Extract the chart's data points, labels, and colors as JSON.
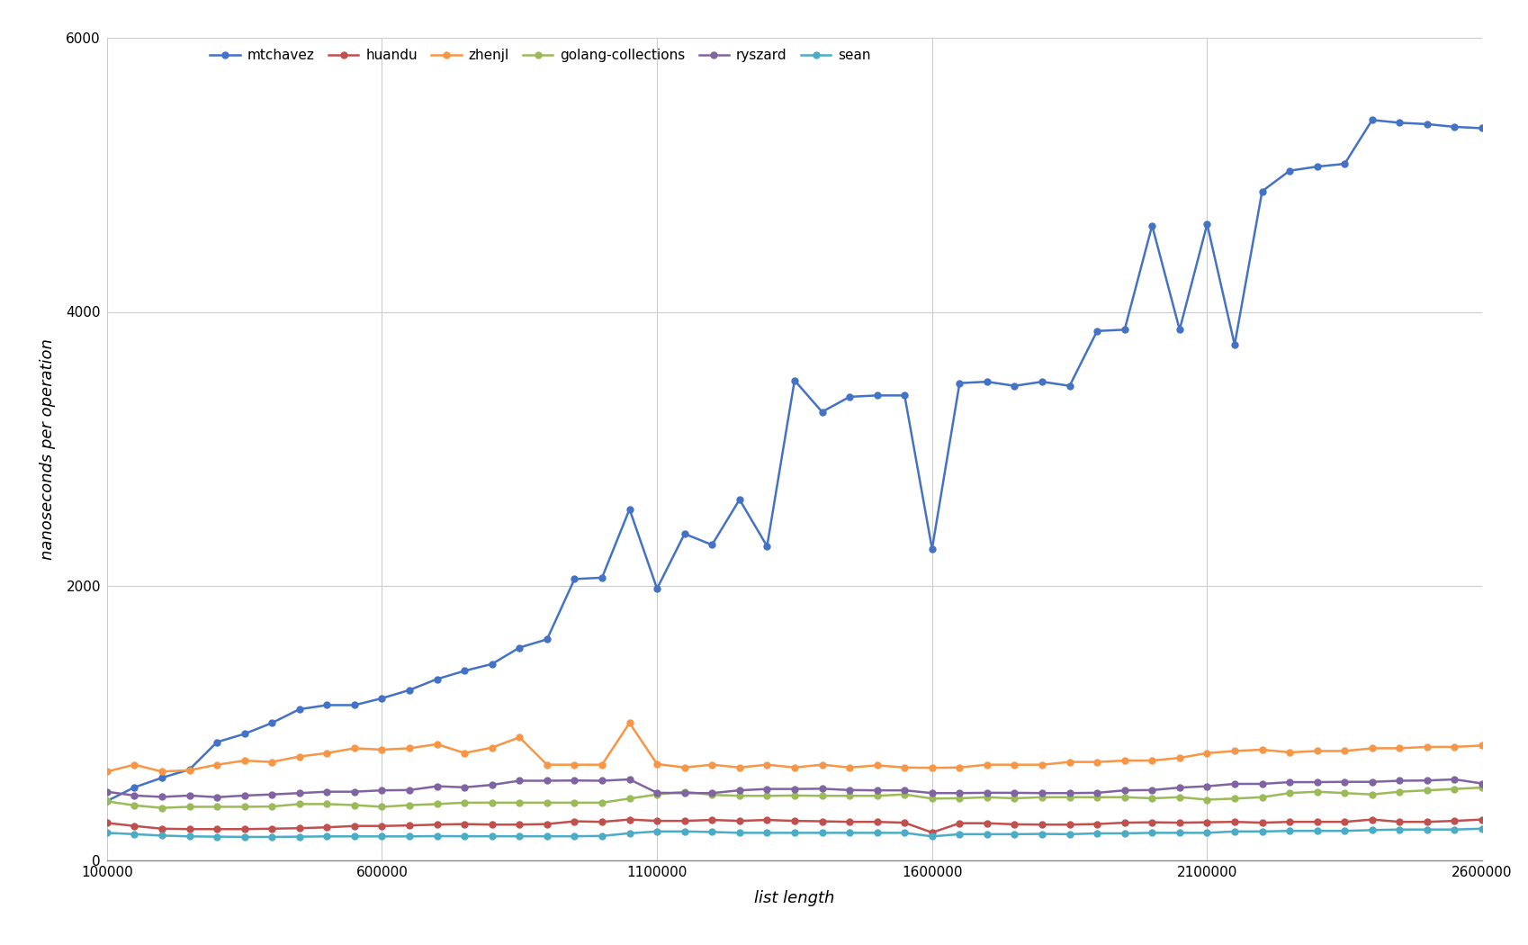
{
  "title": "",
  "xlabel": "list length",
  "ylabel": "nanoseconds per operation",
  "xlim": [
    100000,
    2600000
  ],
  "ylim": [
    0,
    6000
  ],
  "yticks": [
    0,
    2000,
    4000,
    6000
  ],
  "xticks": [
    100000,
    600000,
    1100000,
    1600000,
    2100000,
    2600000
  ],
  "background_color": "#ffffff",
  "grid_color": "#cccccc",
  "series": [
    {
      "name": "mtchavez",
      "color": "#4472c4",
      "x": [
        100000,
        150000,
        200000,
        250000,
        300000,
        350000,
        400000,
        450000,
        500000,
        550000,
        600000,
        650000,
        700000,
        750000,
        800000,
        850000,
        900000,
        950000,
        1000000,
        1050000,
        1100000,
        1150000,
        1200000,
        1250000,
        1300000,
        1350000,
        1400000,
        1450000,
        1500000,
        1550000,
        1600000,
        1650000,
        1700000,
        1750000,
        1800000,
        1850000,
        1900000,
        1950000,
        2000000,
        2050000,
        2100000,
        2150000,
        2200000,
        2250000,
        2300000,
        2350000,
        2400000,
        2450000,
        2500000,
        2550000,
        2600000
      ],
      "y": [
        430,
        530,
        600,
        660,
        860,
        920,
        1000,
        1100,
        1130,
        1130,
        1180,
        1240,
        1320,
        1380,
        1430,
        1550,
        1610,
        2050,
        2060,
        2560,
        1980,
        2380,
        2300,
        2630,
        2290,
        3500,
        3270,
        3380,
        3390,
        3390,
        2270,
        3480,
        3490,
        3460,
        3490,
        3460,
        3860,
        3870,
        4630,
        3870,
        4640,
        3760,
        4880,
        5030,
        5060,
        5080,
        5400,
        5380,
        5370,
        5350,
        5340
      ]
    },
    {
      "name": "huandu",
      "color": "#c0504d",
      "x": [
        100000,
        150000,
        200000,
        250000,
        300000,
        350000,
        400000,
        450000,
        500000,
        550000,
        600000,
        650000,
        700000,
        750000,
        800000,
        850000,
        900000,
        950000,
        1000000,
        1050000,
        1100000,
        1150000,
        1200000,
        1250000,
        1300000,
        1350000,
        1400000,
        1450000,
        1500000,
        1550000,
        1600000,
        1650000,
        1700000,
        1750000,
        1800000,
        1850000,
        1900000,
        1950000,
        2000000,
        2050000,
        2100000,
        2150000,
        2200000,
        2250000,
        2300000,
        2350000,
        2400000,
        2450000,
        2500000,
        2550000,
        2600000
      ],
      "y": [
        270,
        248,
        228,
        225,
        225,
        225,
        228,
        232,
        238,
        248,
        248,
        252,
        258,
        262,
        258,
        258,
        262,
        282,
        278,
        295,
        285,
        285,
        292,
        285,
        292,
        285,
        282,
        278,
        278,
        272,
        200,
        268,
        268,
        260,
        258,
        258,
        262,
        272,
        275,
        272,
        275,
        278,
        272,
        278,
        278,
        278,
        295,
        278,
        278,
        285,
        295
      ]
    },
    {
      "name": "zhenjl",
      "color": "#f79646",
      "x": [
        100000,
        150000,
        200000,
        250000,
        300000,
        350000,
        400000,
        450000,
        500000,
        550000,
        600000,
        650000,
        700000,
        750000,
        800000,
        850000,
        900000,
        950000,
        1000000,
        1050000,
        1100000,
        1150000,
        1200000,
        1250000,
        1300000,
        1350000,
        1400000,
        1450000,
        1500000,
        1550000,
        1600000,
        1650000,
        1700000,
        1750000,
        1800000,
        1850000,
        1900000,
        1950000,
        2000000,
        2050000,
        2100000,
        2150000,
        2200000,
        2250000,
        2300000,
        2350000,
        2400000,
        2450000,
        2500000,
        2550000,
        2600000
      ],
      "y": [
        645,
        695,
        645,
        655,
        695,
        725,
        715,
        755,
        780,
        815,
        805,
        815,
        845,
        780,
        820,
        895,
        695,
        695,
        695,
        1000,
        700,
        675,
        695,
        675,
        695,
        675,
        695,
        675,
        690,
        675,
        672,
        675,
        695,
        695,
        695,
        715,
        715,
        725,
        725,
        745,
        780,
        795,
        805,
        785,
        795,
        795,
        815,
        815,
        825,
        825,
        835
      ]
    },
    {
      "name": "golang-collections",
      "color": "#9bbb59",
      "x": [
        100000,
        150000,
        200000,
        250000,
        300000,
        350000,
        400000,
        450000,
        500000,
        550000,
        600000,
        650000,
        700000,
        750000,
        800000,
        850000,
        900000,
        950000,
        1000000,
        1050000,
        1100000,
        1150000,
        1200000,
        1250000,
        1300000,
        1350000,
        1400000,
        1450000,
        1500000,
        1550000,
        1600000,
        1650000,
        1700000,
        1750000,
        1800000,
        1850000,
        1900000,
        1950000,
        2000000,
        2050000,
        2100000,
        2150000,
        2200000,
        2250000,
        2300000,
        2350000,
        2400000,
        2450000,
        2500000,
        2550000,
        2600000
      ],
      "y": [
        428,
        398,
        380,
        388,
        388,
        388,
        390,
        408,
        408,
        400,
        388,
        400,
        408,
        418,
        418,
        418,
        418,
        418,
        418,
        448,
        478,
        498,
        475,
        468,
        468,
        470,
        468,
        468,
        468,
        478,
        448,
        450,
        458,
        450,
        458,
        458,
        458,
        458,
        450,
        458,
        440,
        448,
        458,
        488,
        498,
        488,
        478,
        498,
        508,
        518,
        528
      ]
    },
    {
      "name": "ryszard",
      "color": "#8064a2",
      "x": [
        100000,
        150000,
        200000,
        250000,
        300000,
        350000,
        400000,
        450000,
        500000,
        550000,
        600000,
        650000,
        700000,
        750000,
        800000,
        850000,
        900000,
        950000,
        1000000,
        1050000,
        1100000,
        1150000,
        1200000,
        1250000,
        1300000,
        1350000,
        1400000,
        1450000,
        1500000,
        1550000,
        1600000,
        1650000,
        1700000,
        1750000,
        1800000,
        1850000,
        1900000,
        1950000,
        2000000,
        2050000,
        2100000,
        2150000,
        2200000,
        2250000,
        2300000,
        2350000,
        2400000,
        2450000,
        2500000,
        2550000,
        2600000
      ],
      "y": [
        498,
        470,
        460,
        470,
        458,
        470,
        478,
        488,
        498,
        498,
        508,
        510,
        538,
        530,
        548,
        578,
        578,
        580,
        578,
        588,
        490,
        488,
        488,
        508,
        518,
        518,
        520,
        510,
        508,
        508,
        488,
        488,
        490,
        490,
        488,
        488,
        490,
        508,
        510,
        528,
        538,
        555,
        555,
        568,
        568,
        570,
        570,
        578,
        580,
        588,
        558
      ]
    },
    {
      "name": "sean",
      "color": "#4bacc6",
      "x": [
        100000,
        150000,
        200000,
        250000,
        300000,
        350000,
        400000,
        450000,
        500000,
        550000,
        600000,
        650000,
        700000,
        750000,
        800000,
        850000,
        900000,
        950000,
        1000000,
        1050000,
        1100000,
        1150000,
        1200000,
        1250000,
        1300000,
        1350000,
        1400000,
        1450000,
        1500000,
        1550000,
        1600000,
        1650000,
        1700000,
        1750000,
        1800000,
        1850000,
        1900000,
        1950000,
        2000000,
        2050000,
        2100000,
        2150000,
        2200000,
        2250000,
        2300000,
        2350000,
        2400000,
        2450000,
        2500000,
        2550000,
        2600000
      ],
      "y": [
        198,
        188,
        178,
        172,
        170,
        168,
        168,
        170,
        172,
        172,
        172,
        172,
        174,
        173,
        173,
        173,
        173,
        173,
        175,
        195,
        208,
        208,
        204,
        198,
        198,
        198,
        198,
        198,
        198,
        198,
        172,
        188,
        188,
        188,
        190,
        188,
        194,
        194,
        198,
        198,
        198,
        208,
        208,
        212,
        212,
        212,
        218,
        222,
        222,
        222,
        228
      ]
    }
  ],
  "legend_fontsize": 11,
  "axis_fontsize": 13,
  "tick_fontsize": 11,
  "linewidth": 1.8,
  "markersize": 5
}
